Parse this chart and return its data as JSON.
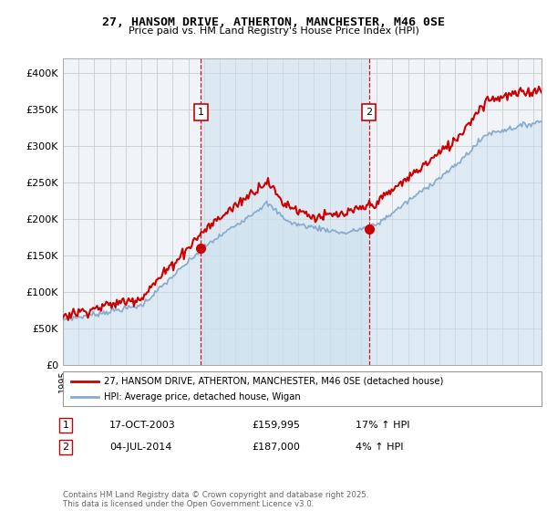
{
  "title": "27, HANSOM DRIVE, ATHERTON, MANCHESTER, M46 0SE",
  "subtitle": "Price paid vs. HM Land Registry's House Price Index (HPI)",
  "legend_line1": "27, HANSOM DRIVE, ATHERTON, MANCHESTER, M46 0SE (detached house)",
  "legend_line2": "HPI: Average price, detached house, Wigan",
  "annotation1_date": "17-OCT-2003",
  "annotation1_price": "£159,995",
  "annotation1_hpi": "17% ↑ HPI",
  "annotation2_date": "04-JUL-2014",
  "annotation2_price": "£187,000",
  "annotation2_hpi": "4% ↑ HPI",
  "footer": "Contains HM Land Registry data © Crown copyright and database right 2025.\nThis data is licensed under the Open Government Licence v3.0.",
  "red_color": "#cc0000",
  "blue_color": "#88aacc",
  "blue_fill": "#cce0f0",
  "ann_color": "#cc0000",
  "background_color": "#ffffff",
  "plot_bg": "#f0f4f8",
  "grid_color": "#cccccc",
  "ylim": [
    0,
    420000
  ],
  "yticks": [
    0,
    50000,
    100000,
    150000,
    200000,
    250000,
    300000,
    350000,
    400000
  ],
  "purchase1_year": 2003.8,
  "purchase1_price": 159995,
  "purchase2_year": 2014.5,
  "purchase2_price": 187000
}
